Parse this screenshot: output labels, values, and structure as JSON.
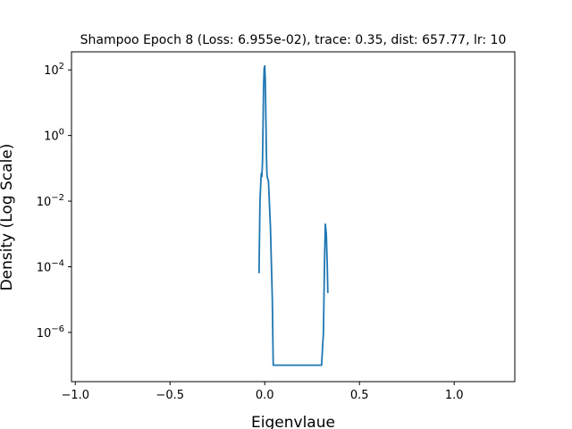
{
  "chart_data": {
    "type": "line",
    "title": "Shampoo Epoch 8 (Loss: 6.955e-02), trace: 0.35, dist: 657.77, lr: 10",
    "xlabel": "Eigenvlaue",
    "ylabel": "Density (Log Scale)",
    "xlim": [
      -1.02,
      1.32
    ],
    "ylim_log10": [
      -7.5,
      2.55
    ],
    "yscale": "log",
    "grid": false,
    "x_ticks": [
      {
        "value": -1.0,
        "label": "−1.0"
      },
      {
        "value": -0.5,
        "label": "−0.5"
      },
      {
        "value": 0.0,
        "label": "0.0"
      },
      {
        "value": 0.5,
        "label": "0.5"
      },
      {
        "value": 1.0,
        "label": "1.0"
      }
    ],
    "y_ticks": [
      {
        "exp": 2,
        "base": "10",
        "sup": "2"
      },
      {
        "exp": 0,
        "base": "10",
        "sup": "0"
      },
      {
        "exp": -2,
        "base": "10",
        "sup": "−2"
      },
      {
        "exp": -4,
        "base": "10",
        "sup": "−4"
      },
      {
        "exp": -6,
        "base": "10",
        "sup": "−6"
      }
    ],
    "series": [
      {
        "color": "#1f77b4",
        "x": [
          -0.03,
          -0.025,
          -0.02,
          -0.018,
          -0.015,
          -0.012,
          -0.009,
          -0.006,
          -0.003,
          0.0,
          0.003,
          0.006,
          0.009,
          0.012,
          0.015,
          0.02,
          0.03,
          0.04,
          0.045,
          0.1,
          0.2,
          0.3,
          0.31,
          0.315,
          0.32,
          0.325,
          0.33,
          0.333
        ],
        "y_log10": [
          -4.2,
          -2.0,
          -1.3,
          -1.15,
          -1.25,
          -0.8,
          0.3,
          1.5,
          2.05,
          2.12,
          1.7,
          0.5,
          -0.6,
          -1.2,
          -1.3,
          -1.4,
          -2.8,
          -5.0,
          -7.0,
          -7.0,
          -7.0,
          -7.0,
          -6.0,
          -4.0,
          -2.7,
          -3.0,
          -4.0,
          -4.8
        ]
      }
    ]
  }
}
